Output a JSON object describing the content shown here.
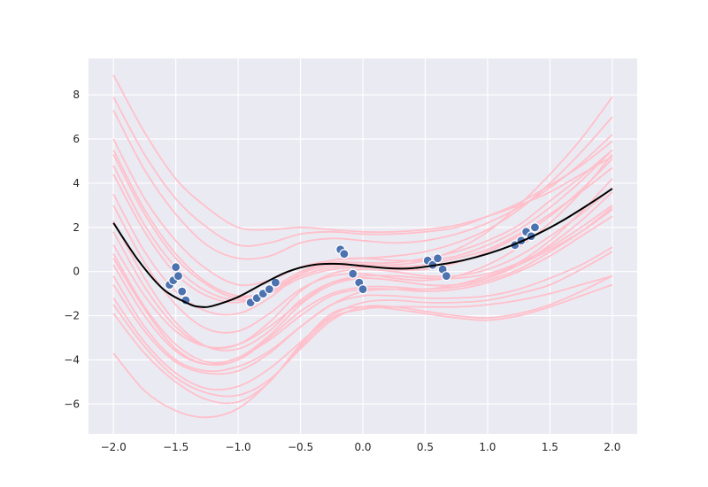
{
  "chart_data": {
    "type": "line",
    "title": "",
    "xlabel": "",
    "ylabel": "",
    "xlim": [
      -2.2,
      2.2
    ],
    "ylim": [
      -7.35,
      9.65
    ],
    "grid": true,
    "x_ticks": [
      -2.0,
      -1.5,
      -1.0,
      -0.5,
      0.0,
      0.5,
      1.0,
      1.5,
      2.0
    ],
    "x_tick_labels": [
      "−2.0",
      "−1.5",
      "−1.0",
      "−0.5",
      "0.0",
      "0.5",
      "1.0",
      "1.5",
      "2.0"
    ],
    "y_ticks": [
      -6,
      -4,
      -2,
      0,
      2,
      4,
      6,
      8
    ],
    "y_tick_labels": [
      "−6",
      "−4",
      "−2",
      "0",
      "2",
      "4",
      "6",
      "8"
    ],
    "mean_curve": {
      "color": "#000000",
      "x": [
        -2.0,
        -1.8,
        -1.6,
        -1.4,
        -1.3,
        -1.2,
        -1.0,
        -0.8,
        -0.6,
        -0.4,
        -0.2,
        0.0,
        0.2,
        0.4,
        0.6,
        0.8,
        1.0,
        1.2,
        1.4,
        1.6,
        1.8,
        2.0
      ],
      "y": [
        2.2,
        0.5,
        -0.8,
        -1.45,
        -1.6,
        -1.55,
        -1.15,
        -0.55,
        0.0,
        0.3,
        0.35,
        0.25,
        0.15,
        0.15,
        0.3,
        0.5,
        0.8,
        1.2,
        1.7,
        2.3,
        3.0,
        3.75
      ]
    },
    "samples": {
      "color": "#ffc0cb",
      "x": [
        -2.0,
        -1.75,
        -1.5,
        -1.25,
        -1.0,
        -0.75,
        -0.5,
        -0.25,
        0.0,
        0.25,
        0.5,
        0.75,
        1.0,
        1.25,
        1.5,
        1.75,
        2.0
      ],
      "curves": [
        [
          8.9,
          6.3,
          4.2,
          2.9,
          2.0,
          1.9,
          2.0,
          1.9,
          1.8,
          1.8,
          1.9,
          2.1,
          2.5,
          3.0,
          3.6,
          4.4,
          5.2
        ],
        [
          7.9,
          5.3,
          3.3,
          2.0,
          1.2,
          1.3,
          1.7,
          1.8,
          1.7,
          1.7,
          1.8,
          2.0,
          2.5,
          3.1,
          3.9,
          4.8,
          5.9
        ],
        [
          7.3,
          4.6,
          2.6,
          1.2,
          0.6,
          0.7,
          1.3,
          1.5,
          1.4,
          1.3,
          1.4,
          1.7,
          2.2,
          2.9,
          3.8,
          4.9,
          6.2
        ],
        [
          6.0,
          3.3,
          1.4,
          0.1,
          -0.6,
          -0.4,
          0.2,
          0.5,
          0.6,
          0.7,
          0.9,
          1.3,
          1.9,
          2.8,
          4.0,
          5.4,
          7.0
        ],
        [
          5.5,
          2.8,
          0.8,
          -0.5,
          -1.1,
          -0.9,
          -0.2,
          0.2,
          0.3,
          0.3,
          0.5,
          1.0,
          1.8,
          3.0,
          4.4,
          6.0,
          7.9
        ],
        [
          5.3,
          2.6,
          0.6,
          -0.6,
          -1.2,
          -0.8,
          0.0,
          0.4,
          0.4,
          0.4,
          0.6,
          0.9,
          1.4,
          2.1,
          3.2,
          4.3,
          5.5
        ],
        [
          4.8,
          2.1,
          0.2,
          -0.9,
          -1.3,
          -1.0,
          -0.3,
          0.1,
          0.2,
          0.2,
          0.3,
          0.6,
          1.0,
          1.7,
          2.6,
          3.6,
          4.7
        ],
        [
          4.4,
          1.8,
          -0.1,
          -1.1,
          -1.4,
          -0.9,
          -0.1,
          0.3,
          0.3,
          0.1,
          0.1,
          0.4,
          0.9,
          1.6,
          2.5,
          3.7,
          5.1
        ],
        [
          3.5,
          0.9,
          -0.9,
          -1.8,
          -1.9,
          -1.2,
          -0.1,
          0.5,
          0.6,
          0.5,
          0.5,
          0.7,
          1.2,
          1.9,
          2.9,
          4.1,
          5.5
        ],
        [
          3.0,
          0.4,
          -1.5,
          -2.6,
          -2.7,
          -1.9,
          -0.8,
          -0.2,
          -0.1,
          -0.3,
          -0.4,
          -0.2,
          0.3,
          1.1,
          2.2,
          3.6,
          5.3
        ],
        [
          2.3,
          -0.3,
          -2.3,
          -3.4,
          -3.5,
          -2.7,
          -1.3,
          -0.5,
          -0.3,
          -0.4,
          -0.6,
          -0.6,
          -0.3,
          0.4,
          1.4,
          2.7,
          4.2
        ],
        [
          1.8,
          -0.7,
          -2.5,
          -3.4,
          -3.3,
          -2.3,
          -0.9,
          -0.1,
          0.1,
          0.0,
          -0.2,
          -0.2,
          0.1,
          0.7,
          1.6,
          2.6,
          3.8
        ],
        [
          1.2,
          -1.1,
          -2.7,
          -3.4,
          -3.3,
          -2.5,
          -1.4,
          -0.5,
          -0.2,
          -0.2,
          -0.3,
          -0.3,
          -0.1,
          0.4,
          1.1,
          2.0,
          3.0
        ],
        [
          0.8,
          -1.6,
          -3.3,
          -4.1,
          -3.9,
          -2.9,
          -1.5,
          -0.6,
          -0.3,
          -0.4,
          -0.6,
          -0.6,
          -0.3,
          0.3,
          1.2,
          2.3,
          3.6
        ],
        [
          0.6,
          -1.7,
          -3.5,
          -4.2,
          -4.0,
          -3.0,
          -1.8,
          -1.0,
          -0.7,
          -0.7,
          -0.8,
          -0.7,
          -0.4,
          0.1,
          0.9,
          1.8,
          2.9
        ],
        [
          0.3,
          -2.0,
          -3.6,
          -4.2,
          -3.9,
          -3.1,
          -2.0,
          -1.1,
          -0.8,
          -0.8,
          -0.9,
          -0.8,
          -0.5,
          0.0,
          0.7,
          1.6,
          2.5
        ],
        [
          -0.2,
          -2.5,
          -4.0,
          -4.5,
          -4.3,
          -3.6,
          -2.5,
          -1.5,
          -0.9,
          -0.8,
          -0.8,
          -0.6,
          -0.2,
          0.3,
          1.0,
          1.8,
          2.8
        ],
        [
          -0.6,
          -2.7,
          -4.1,
          -4.6,
          -4.5,
          -3.7,
          -2.5,
          -1.5,
          -1.1,
          -1.1,
          -1.2,
          -1.2,
          -1.1,
          -0.8,
          -0.3,
          0.3,
          1.1
        ],
        [
          -1.2,
          -3.2,
          -4.6,
          -5.3,
          -5.2,
          -4.4,
          -3.2,
          -2.0,
          -1.4,
          -1.3,
          -1.4,
          -1.4,
          -1.3,
          -1.0,
          -0.6,
          0.1,
          0.9
        ],
        [
          -1.5,
          -3.4,
          -4.8,
          -5.5,
          -5.6,
          -4.9,
          -3.5,
          -2.2,
          -1.6,
          -1.6,
          -1.8,
          -2.0,
          -2.1,
          -1.9,
          -1.5,
          -0.9,
          -0.2
        ],
        [
          -1.9,
          -3.7,
          -5.0,
          -5.8,
          -5.9,
          -5.0,
          -3.3,
          -1.9,
          -1.6,
          -1.7,
          -1.9,
          -2.1,
          -2.2,
          -2.0,
          -1.6,
          -1.1,
          -0.6
        ],
        [
          -3.7,
          -5.4,
          -6.3,
          -6.6,
          -6.2,
          -5.0,
          -3.4,
          -2.1,
          -1.7,
          -1.6,
          -1.6,
          -1.6,
          -1.5,
          -1.3,
          -1.0,
          -0.6,
          -0.2
        ]
      ]
    },
    "observations": {
      "color": "#4c72b0",
      "points": [
        {
          "x": -1.55,
          "y": -0.6
        },
        {
          "x": -1.52,
          "y": -0.4
        },
        {
          "x": -1.5,
          "y": 0.2
        },
        {
          "x": -1.48,
          "y": -0.2
        },
        {
          "x": -1.45,
          "y": -0.9
        },
        {
          "x": -1.42,
          "y": -1.3
        },
        {
          "x": -0.9,
          "y": -1.4
        },
        {
          "x": -0.85,
          "y": -1.2
        },
        {
          "x": -0.8,
          "y": -1.0
        },
        {
          "x": -0.75,
          "y": -0.8
        },
        {
          "x": -0.7,
          "y": -0.5
        },
        {
          "x": -0.18,
          "y": 1.0
        },
        {
          "x": -0.15,
          "y": 0.8
        },
        {
          "x": -0.08,
          "y": -0.1
        },
        {
          "x": -0.03,
          "y": -0.5
        },
        {
          "x": 0.0,
          "y": -0.8
        },
        {
          "x": 0.52,
          "y": 0.5
        },
        {
          "x": 0.56,
          "y": 0.3
        },
        {
          "x": 0.6,
          "y": 0.6
        },
        {
          "x": 0.64,
          "y": 0.1
        },
        {
          "x": 0.67,
          "y": -0.2
        },
        {
          "x": 1.22,
          "y": 1.2
        },
        {
          "x": 1.27,
          "y": 1.4
        },
        {
          "x": 1.31,
          "y": 1.8
        },
        {
          "x": 1.35,
          "y": 1.6
        },
        {
          "x": 1.38,
          "y": 2.0
        }
      ]
    }
  }
}
